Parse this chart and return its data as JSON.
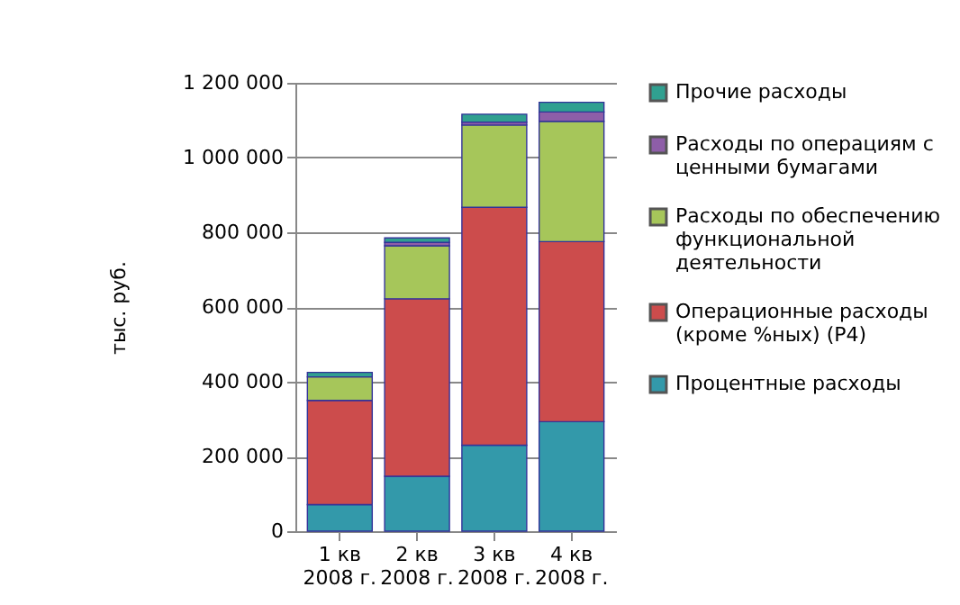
{
  "chart_data": {
    "type": "bar",
    "stacked": true,
    "ylabel": "тыс. руб.",
    "categories": [
      "1 кв 2008 г.",
      "2 кв 2008 г.",
      "3 кв 2008 г.",
      "4 кв 2008 г."
    ],
    "series": [
      {
        "name": "Процентные расходы",
        "color": "#3399aa",
        "values": [
          71000,
          147000,
          230000,
          293000
        ]
      },
      {
        "name": "Операционные расходы (кроме %ных) (Р4)",
        "color": "#cc4c4c",
        "values": [
          279000,
          475000,
          637000,
          482000
        ]
      },
      {
        "name": "Расходы по обеспечению функциональной деятельности",
        "color": "#a6c65a",
        "values": [
          63000,
          142000,
          220000,
          322000
        ]
      },
      {
        "name": "Расходы по операциям с ценными бумагами",
        "color": "#8e5ea8",
        "values": [
          null,
          9000,
          8000,
          25000
        ]
      },
      {
        "name": "Прочие расходы",
        "color": "#30a090",
        "values": [
          12000,
          12000,
          21000,
          26000
        ]
      }
    ],
    "ylim": [
      0,
      1200000
    ],
    "yticks": [
      0,
      {
        "value": 200000,
        "label": "200 000"
      },
      {
        "value": 400000,
        "label": "400 000"
      },
      {
        "value": 600000,
        "label": "600 000"
      },
      {
        "value": 800000,
        "label": "800 000"
      },
      {
        "value": 1000000,
        "label": "1 000 000"
      },
      {
        "value": 1200000,
        "label": "1 200 000"
      }
    ],
    "grid": "y",
    "legend": "right"
  }
}
